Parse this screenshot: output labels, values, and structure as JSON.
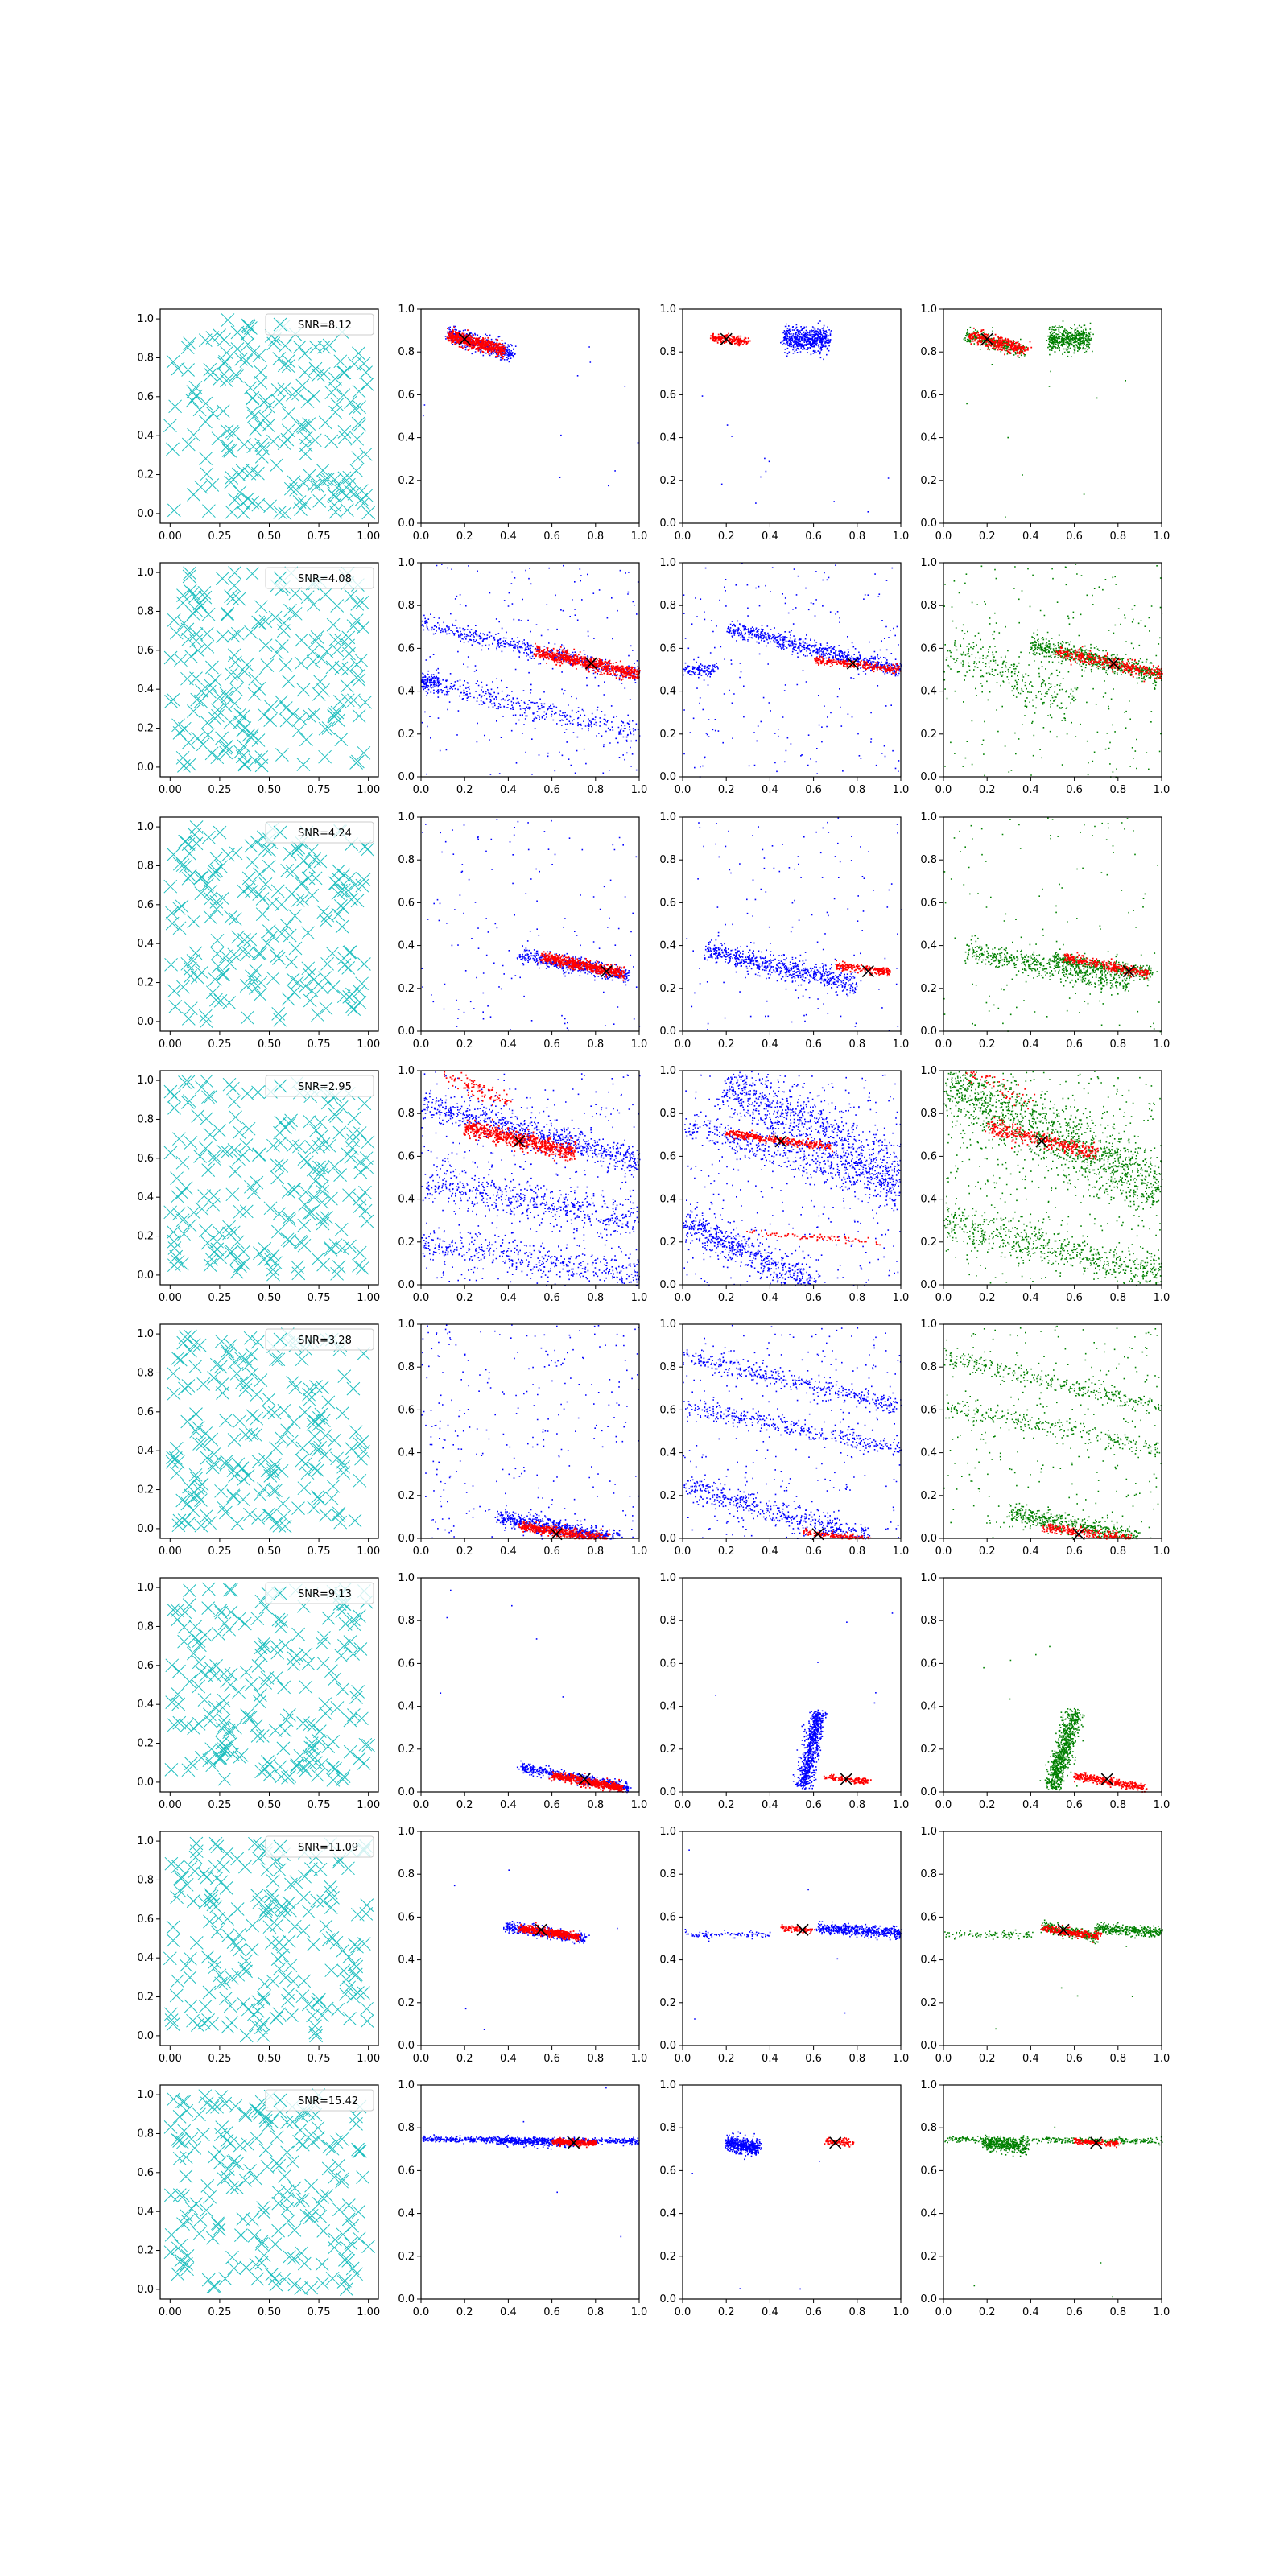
{
  "colors": {
    "cross": "#1fbfbf",
    "blue": "#0000ff",
    "red": "#ff0000",
    "green": "#008000",
    "marker": "#000000",
    "legend_border": "#cccccc"
  },
  "tick_labels": {
    "col1": [
      "0.00",
      "0.25",
      "0.50",
      "0.75",
      "1.00"
    ],
    "col1_y": [
      "0.0",
      "0.2",
      "0.4",
      "0.6",
      "0.8",
      "1.0"
    ],
    "other": [
      "0.0",
      "0.2",
      "0.4",
      "0.6",
      "0.8",
      "1.0"
    ]
  },
  "chart_data": {
    "type": "scatter",
    "layout": "8 rows x 4 columns of scatter panels",
    "column_types": [
      "random crosses with SNR legend",
      "blue + red scatter",
      "blue + red scatter",
      "green + red scatter"
    ],
    "axes": {
      "col1": {
        "xlim": [
          -0.05,
          1.05
        ],
        "ylim": [
          -0.05,
          1.05
        ],
        "xticks": [
          0,
          0.25,
          0.5,
          0.75,
          1.0
        ],
        "yticks": [
          0,
          0.2,
          0.4,
          0.6,
          0.8,
          1.0
        ]
      },
      "other": {
        "xlim": [
          0,
          1
        ],
        "ylim": [
          0,
          1
        ],
        "xticks": [
          0,
          0.2,
          0.4,
          0.6,
          0.8,
          1.0
        ],
        "yticks": [
          0,
          0.2,
          0.4,
          0.6,
          0.8,
          1.0
        ]
      }
    },
    "legend_placement": "top-right",
    "grid": false,
    "rows": [
      {
        "snr_label": "SNR=8.12",
        "marker": [
          0.2,
          0.86
        ],
        "red": [
          {
            "x0": 0.12,
            "y0": 0.88,
            "x1": 0.38,
            "y1": 0.81,
            "w": 0.04,
            "n": 600
          }
        ],
        "blue2": [
          {
            "x0": 0.12,
            "y0": 0.89,
            "x1": 0.42,
            "y1": 0.79,
            "w": 0.05,
            "n": 500
          }
        ],
        "blue3": [
          {
            "x0": 0.46,
            "y0": 0.86,
            "x1": 0.67,
            "y1": 0.86,
            "w": 0.08,
            "n": 600
          }
        ],
        "red3": [
          {
            "x0": 0.13,
            "y0": 0.87,
            "x1": 0.3,
            "y1": 0.85,
            "w": 0.02,
            "n": 200
          }
        ],
        "green": [
          {
            "x0": 0.1,
            "y0": 0.88,
            "x1": 0.37,
            "y1": 0.81,
            "w": 0.04,
            "n": 300
          },
          {
            "x0": 0.48,
            "y0": 0.86,
            "x1": 0.67,
            "y1": 0.86,
            "w": 0.08,
            "n": 500
          }
        ],
        "noise": 12
      },
      {
        "snr_label": "SNR=4.08",
        "marker": [
          0.78,
          0.53
        ],
        "red": [
          {
            "x0": 0.52,
            "y0": 0.59,
            "x1": 1.0,
            "y1": 0.48,
            "w": 0.04,
            "n": 700
          }
        ],
        "blue2": [
          {
            "x0": 0.0,
            "y0": 0.72,
            "x1": 1.0,
            "y1": 0.48,
            "w": 0.05,
            "n": 500
          },
          {
            "x0": 0.0,
            "y0": 0.45,
            "x1": 1.0,
            "y1": 0.2,
            "w": 0.08,
            "n": 400
          },
          {
            "x0": 0.0,
            "y0": 0.45,
            "x1": 0.08,
            "y1": 0.45,
            "w": 0.05,
            "n": 120
          }
        ],
        "blue3": [
          {
            "x0": 0.2,
            "y0": 0.7,
            "x1": 1.0,
            "y1": 0.5,
            "w": 0.05,
            "n": 700
          },
          {
            "x0": 0.0,
            "y0": 0.5,
            "x1": 0.15,
            "y1": 0.5,
            "w": 0.04,
            "n": 120
          }
        ],
        "red3": [
          {
            "x0": 0.6,
            "y0": 0.55,
            "x1": 1.0,
            "y1": 0.5,
            "w": 0.02,
            "n": 250
          }
        ],
        "green": [
          {
            "x0": 0.4,
            "y0": 0.62,
            "x1": 1.0,
            "y1": 0.48,
            "w": 0.06,
            "n": 700
          },
          {
            "x0": 0.0,
            "y0": 0.6,
            "x1": 0.6,
            "y1": 0.35,
            "w": 0.15,
            "n": 300
          }
        ],
        "noise": 220
      },
      {
        "snr_label": "SNR=4.24",
        "marker": [
          0.85,
          0.28
        ],
        "red": [
          {
            "x0": 0.55,
            "y0": 0.35,
            "x1": 0.93,
            "y1": 0.27,
            "w": 0.03,
            "n": 600
          }
        ],
        "blue2": [
          {
            "x0": 0.45,
            "y0": 0.36,
            "x1": 0.95,
            "y1": 0.26,
            "w": 0.05,
            "n": 500
          }
        ],
        "blue3": [
          {
            "x0": 0.1,
            "y0": 0.38,
            "x1": 0.8,
            "y1": 0.22,
            "w": 0.07,
            "n": 700
          }
        ],
        "red3": [
          {
            "x0": 0.7,
            "y0": 0.31,
            "x1": 0.95,
            "y1": 0.28,
            "w": 0.02,
            "n": 200
          }
        ],
        "green": [
          {
            "x0": 0.1,
            "y0": 0.38,
            "x1": 0.85,
            "y1": 0.22,
            "w": 0.07,
            "n": 500
          },
          {
            "x0": 0.5,
            "y0": 0.34,
            "x1": 0.95,
            "y1": 0.27,
            "w": 0.04,
            "n": 400
          }
        ],
        "noise": 140
      },
      {
        "snr_label": "SNR=2.95",
        "marker": [
          0.45,
          0.67
        ],
        "red": [
          {
            "x0": 0.2,
            "y0": 0.74,
            "x1": 0.7,
            "y1": 0.62,
            "w": 0.05,
            "n": 700
          },
          {
            "x0": 0.1,
            "y0": 0.99,
            "x1": 0.4,
            "y1": 0.85,
            "w": 0.06,
            "n": 100
          }
        ],
        "blue2": [
          {
            "x0": 0.0,
            "y0": 0.85,
            "x1": 1.0,
            "y1": 0.58,
            "w": 0.08,
            "n": 700
          },
          {
            "x0": 0.0,
            "y0": 0.48,
            "x1": 1.0,
            "y1": 0.3,
            "w": 0.12,
            "n": 500
          },
          {
            "x0": 0.0,
            "y0": 0.2,
            "x1": 1.0,
            "y1": 0.05,
            "w": 0.1,
            "n": 400
          }
        ],
        "blue3": [
          {
            "x0": 0.0,
            "y0": 0.3,
            "x1": 0.6,
            "y1": 0.0,
            "w": 0.1,
            "n": 600
          },
          {
            "x0": 0.2,
            "y0": 0.95,
            "x1": 1.0,
            "y1": 0.5,
            "w": 0.2,
            "n": 900
          },
          {
            "x0": 0.0,
            "y0": 0.75,
            "x1": 1.0,
            "y1": 0.45,
            "w": 0.1,
            "n": 400
          }
        ],
        "red3": [
          {
            "x0": 0.2,
            "y0": 0.71,
            "x1": 0.68,
            "y1": 0.65,
            "w": 0.02,
            "n": 350
          },
          {
            "x0": 0.3,
            "y0": 0.25,
            "x1": 0.9,
            "y1": 0.2,
            "w": 0.01,
            "n": 80
          }
        ],
        "green": [
          {
            "x0": 0.0,
            "y0": 0.95,
            "x1": 1.0,
            "y1": 0.45,
            "w": 0.2,
            "n": 1300
          },
          {
            "x0": 0.0,
            "y0": 0.3,
            "x1": 1.0,
            "y1": 0.05,
            "w": 0.12,
            "n": 600
          }
        ],
        "noise": 450
      },
      {
        "snr_label": "SNR=3.28",
        "marker": [
          0.62,
          0.02
        ],
        "red": [
          {
            "x0": 0.45,
            "y0": 0.06,
            "x1": 0.85,
            "y1": 0.0,
            "w": 0.03,
            "n": 500
          }
        ],
        "blue2": [
          {
            "x0": 0.35,
            "y0": 0.1,
            "x1": 0.9,
            "y1": 0.0,
            "w": 0.05,
            "n": 600
          }
        ],
        "blue3": [
          {
            "x0": 0.0,
            "y0": 0.85,
            "x1": 1.0,
            "y1": 0.62,
            "w": 0.06,
            "n": 400
          },
          {
            "x0": 0.0,
            "y0": 0.62,
            "x1": 1.0,
            "y1": 0.42,
            "w": 0.06,
            "n": 350
          },
          {
            "x0": 0.0,
            "y0": 0.25,
            "x1": 0.85,
            "y1": 0.0,
            "w": 0.08,
            "n": 500
          }
        ],
        "red3": [
          {
            "x0": 0.55,
            "y0": 0.03,
            "x1": 0.85,
            "y1": 0.0,
            "w": 0.01,
            "n": 150
          }
        ],
        "green": [
          {
            "x0": 0.0,
            "y0": 0.85,
            "x1": 1.0,
            "y1": 0.62,
            "w": 0.06,
            "n": 300
          },
          {
            "x0": 0.0,
            "y0": 0.62,
            "x1": 1.0,
            "y1": 0.42,
            "w": 0.06,
            "n": 250
          },
          {
            "x0": 0.3,
            "y0": 0.12,
            "x1": 0.9,
            "y1": 0.0,
            "w": 0.06,
            "n": 500
          }
        ],
        "noise": 300
      },
      {
        "snr_label": "SNR=9.13",
        "marker": [
          0.75,
          0.06
        ],
        "red": [
          {
            "x0": 0.6,
            "y0": 0.08,
            "x1": 0.92,
            "y1": 0.02,
            "w": 0.02,
            "n": 600
          }
        ],
        "blue2": [
          {
            "x0": 0.45,
            "y0": 0.12,
            "x1": 0.95,
            "y1": 0.02,
            "w": 0.03,
            "n": 500
          }
        ],
        "blue3": [
          {
            "x0": 0.55,
            "y0": 0.02,
            "x1": 0.62,
            "y1": 0.38,
            "w": 0.05,
            "n": 700
          }
        ],
        "red3": [
          {
            "x0": 0.65,
            "y0": 0.07,
            "x1": 0.85,
            "y1": 0.05,
            "w": 0.01,
            "n": 150
          }
        ],
        "green": [
          {
            "x0": 0.5,
            "y0": 0.02,
            "x1": 0.6,
            "y1": 0.38,
            "w": 0.06,
            "n": 800
          }
        ],
        "noise": 6
      },
      {
        "snr_label": "SNR=11.09",
        "marker": [
          0.55,
          0.54
        ],
        "red": [
          {
            "x0": 0.45,
            "y0": 0.55,
            "x1": 0.72,
            "y1": 0.51,
            "w": 0.02,
            "n": 500
          }
        ],
        "blue2": [
          {
            "x0": 0.38,
            "y0": 0.56,
            "x1": 0.75,
            "y1": 0.5,
            "w": 0.03,
            "n": 400
          }
        ],
        "blue3": [
          {
            "x0": 0.0,
            "y0": 0.52,
            "x1": 0.4,
            "y1": 0.52,
            "w": 0.02,
            "n": 100
          },
          {
            "x0": 0.62,
            "y0": 0.55,
            "x1": 1.0,
            "y1": 0.53,
            "w": 0.03,
            "n": 500
          }
        ],
        "red3": [
          {
            "x0": 0.45,
            "y0": 0.55,
            "x1": 0.6,
            "y1": 0.54,
            "w": 0.01,
            "n": 100
          }
        ],
        "green": [
          {
            "x0": 0.0,
            "y0": 0.52,
            "x1": 0.4,
            "y1": 0.52,
            "w": 0.02,
            "n": 100
          },
          {
            "x0": 0.45,
            "y0": 0.56,
            "x1": 0.7,
            "y1": 0.51,
            "w": 0.03,
            "n": 300
          },
          {
            "x0": 0.7,
            "y0": 0.55,
            "x1": 1.0,
            "y1": 0.53,
            "w": 0.03,
            "n": 350
          }
        ],
        "noise": 5
      },
      {
        "snr_label": "SNR=15.42",
        "marker": [
          0.7,
          0.73
        ],
        "red": [
          {
            "x0": 0.6,
            "y0": 0.74,
            "x1": 0.8,
            "y1": 0.73,
            "w": 0.01,
            "n": 300
          }
        ],
        "blue2": [
          {
            "x0": 0.0,
            "y0": 0.75,
            "x1": 1.0,
            "y1": 0.74,
            "w": 0.01,
            "n": 700
          },
          {
            "x0": 0.35,
            "y0": 0.74,
            "x1": 0.7,
            "y1": 0.73,
            "w": 0.02,
            "n": 300
          }
        ],
        "blue3": [
          {
            "x0": 0.2,
            "y0": 0.73,
            "x1": 0.35,
            "y1": 0.71,
            "w": 0.05,
            "n": 500
          }
        ],
        "red3": [
          {
            "x0": 0.65,
            "y0": 0.74,
            "x1": 0.78,
            "y1": 0.73,
            "w": 0.01,
            "n": 100
          }
        ],
        "green": [
          {
            "x0": 0.0,
            "y0": 0.75,
            "x1": 1.0,
            "y1": 0.74,
            "w": 0.01,
            "n": 400
          },
          {
            "x0": 0.18,
            "y0": 0.73,
            "x1": 0.38,
            "y1": 0.71,
            "w": 0.04,
            "n": 400
          }
        ],
        "noise": 4
      }
    ]
  }
}
